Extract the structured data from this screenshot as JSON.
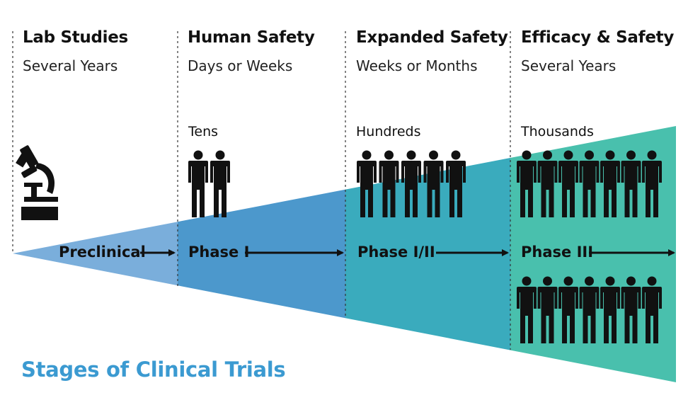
{
  "columns": [
    {
      "heading": "Lab Studies",
      "duration": "Several Years"
    },
    {
      "heading": "Human Safety",
      "duration": "Days or Weeks",
      "participants": "Tens"
    },
    {
      "heading": "Expanded Safety",
      "duration": "Weeks or Months",
      "participants": "Hundreds"
    },
    {
      "heading": "Efficacy & Safety",
      "duration": "Several Years",
      "participants": "Thousands"
    }
  ],
  "phases": [
    "Preclinical",
    "Phase I",
    "Phase I/II",
    "Phase III"
  ],
  "people_counts": {
    "phase1": 2,
    "phase12": 5,
    "phase3_top": 7,
    "phase3_bottom": 7
  },
  "icons": {
    "lab": "microscope-icon",
    "participant": "person-icon"
  },
  "colors": {
    "wedge_preclinical": "#7aaedb",
    "wedge_phase1": "#4c98cc",
    "wedge_phase12": "#3aabbd",
    "wedge_phase3": "#49c0ad",
    "title": "#3b9ad1"
  },
  "title": "Stages of Clinical Trials"
}
